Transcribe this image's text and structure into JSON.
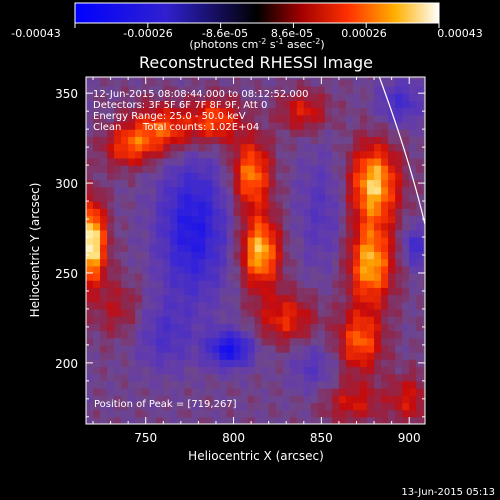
{
  "colorbar": {
    "tick_labels": [
      "-0.00043",
      "-0.00026",
      "-8.6e-05",
      "8.6e-05",
      "0.00026",
      "0.00043"
    ],
    "unit_label": "(photons cm",
    "unit_exp1": "-2",
    "unit_mid1": " s",
    "unit_exp2": "-1",
    "unit_mid2": " asec",
    "unit_exp3": "-2",
    "unit_close": ")"
  },
  "annotations": {
    "time_range": "12-Jun-2015 08:08:44.000 to 08:12:52.000",
    "detectors": "Detectors: 3F 5F 6F 7F 8F 9F, Att 0",
    "energy_range": "Energy Range: 25.0 - 50.0 keV",
    "clean": "Clean",
    "total_counts": "Total counts: 1.02E+04",
    "peak_position": "Position of Peak = [719,267]"
  },
  "footer": {
    "timestamp": "13-Jun-2015 05:13"
  },
  "colors": {
    "negative": "#0000ff",
    "zero": "#7f3f9f",
    "positive_mid": "#ff3000",
    "positive_high": "#ffffff"
  },
  "chart_data": {
    "type": "heatmap",
    "title": "Reconstructed RHESSI Image",
    "xlabel": "Heliocentric X (arcsec)",
    "ylabel": "Heliocentric Y (arcsec)",
    "xlim": [
      716,
      909
    ],
    "ylim": [
      166,
      359
    ],
    "x_ticks": [
      750,
      800,
      850,
      900
    ],
    "y_ticks": [
      200,
      250,
      300,
      350
    ],
    "x_tick_labels": [
      "750",
      "800",
      "850",
      "900"
    ],
    "y_tick_labels": [
      "200",
      "250",
      "300",
      "350"
    ],
    "value_range": [
      -0.00043,
      0.00043
    ],
    "grid_step": 4,
    "sources": [
      {
        "x": 719,
        "y": 267,
        "sx": 6,
        "sy": 16,
        "a": 0.00043
      },
      {
        "x": 740,
        "y": 320,
        "sx": 10,
        "sy": 8,
        "a": 0.0002
      },
      {
        "x": 760,
        "y": 330,
        "sx": 14,
        "sy": 10,
        "a": 0.00026
      },
      {
        "x": 790,
        "y": 335,
        "sx": 10,
        "sy": 9,
        "a": 0.00024
      },
      {
        "x": 810,
        "y": 305,
        "sx": 8,
        "sy": 14,
        "a": 0.0003
      },
      {
        "x": 815,
        "y": 262,
        "sx": 8,
        "sy": 14,
        "a": 0.00036
      },
      {
        "x": 830,
        "y": 225,
        "sx": 12,
        "sy": 10,
        "a": 0.0002
      },
      {
        "x": 840,
        "y": 340,
        "sx": 10,
        "sy": 8,
        "a": 0.00018
      },
      {
        "x": 880,
        "y": 300,
        "sx": 10,
        "sy": 16,
        "a": 0.00036
      },
      {
        "x": 878,
        "y": 255,
        "sx": 9,
        "sy": 16,
        "a": 0.00034
      },
      {
        "x": 872,
        "y": 212,
        "sx": 9,
        "sy": 12,
        "a": 0.00026
      },
      {
        "x": 868,
        "y": 178,
        "sx": 12,
        "sy": 8,
        "a": 0.00016
      },
      {
        "x": 900,
        "y": 180,
        "sx": 8,
        "sy": 10,
        "a": 0.00016
      },
      {
        "x": 735,
        "y": 230,
        "sx": 10,
        "sy": 12,
        "a": 0.00012
      },
      {
        "x": 777,
        "y": 275,
        "sx": 14,
        "sy": 28,
        "a": -0.0003
      },
      {
        "x": 798,
        "y": 208,
        "sx": 9,
        "sy": 7,
        "a": -0.00034
      },
      {
        "x": 760,
        "y": 215,
        "sx": 12,
        "sy": 14,
        "a": -0.00014
      },
      {
        "x": 850,
        "y": 285,
        "sx": 10,
        "sy": 24,
        "a": -0.00012
      },
      {
        "x": 895,
        "y": 345,
        "sx": 9,
        "sy": 9,
        "a": -0.00018
      },
      {
        "x": 845,
        "y": 198,
        "sx": 9,
        "sy": 10,
        "a": -0.00012
      },
      {
        "x": 903,
        "y": 265,
        "sx": 4,
        "sy": 8,
        "a": -0.00022
      }
    ],
    "limb_curve": [
      [
        883,
        359
      ],
      [
        900,
        314
      ],
      [
        909,
        277
      ]
    ]
  }
}
